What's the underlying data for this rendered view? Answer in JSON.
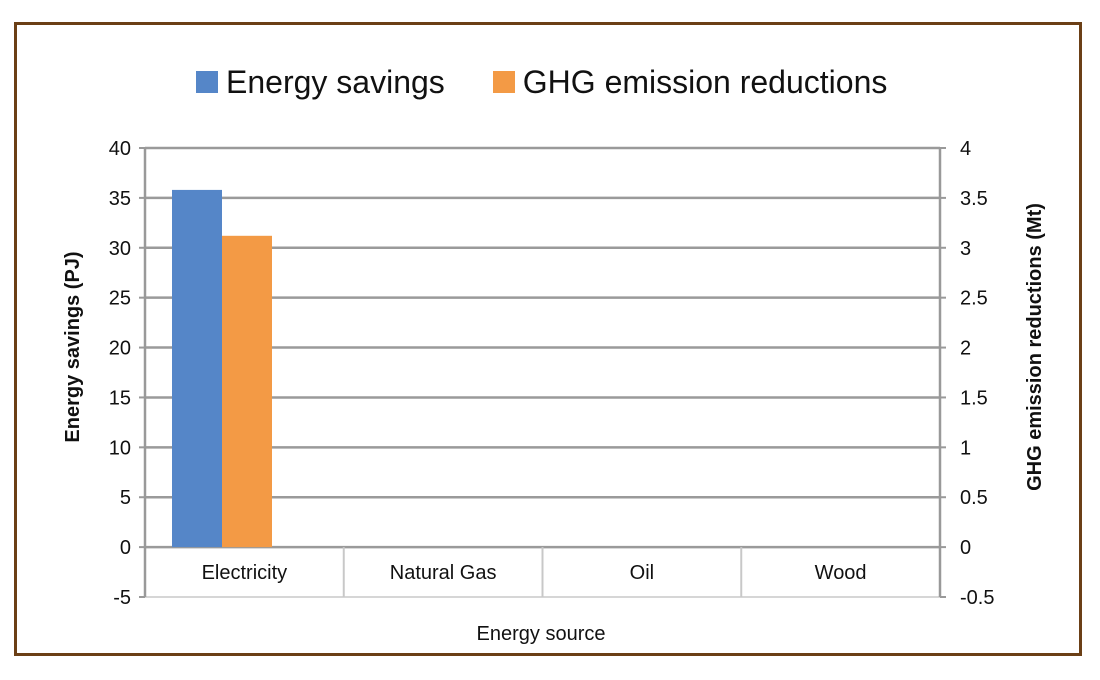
{
  "legend": {
    "energy_label": "Energy savings",
    "ghg_label": "GHG emission reductions"
  },
  "chart_data": {
    "type": "bar",
    "categories": [
      "Electricity",
      "Natural Gas",
      "Oil",
      "Wood"
    ],
    "series": [
      {
        "name": "Energy savings",
        "axis": "left",
        "color": "#5586c8",
        "values": [
          35.8,
          0,
          0,
          0
        ]
      },
      {
        "name": "GHG emission reductions",
        "axis": "right",
        "color": "#f39a45",
        "values": [
          3.12,
          0,
          0,
          0
        ]
      }
    ],
    "xlabel": "Energy source",
    "ylabel": "Energy savings (PJ)",
    "y2label": "GHG emission reductions (Mt)",
    "ylim": [
      -5,
      40
    ],
    "y2lim": [
      -0.5,
      4
    ],
    "yticks": [
      "-5",
      "0",
      "5",
      "10",
      "15",
      "20",
      "25",
      "30",
      "35",
      "40"
    ],
    "y2ticks": [
      "-0.5",
      "0",
      "0.5",
      "1",
      "1.5",
      "2",
      "2.5",
      "3",
      "3.5",
      "4"
    ],
    "grid": true,
    "legend_position": "top"
  }
}
